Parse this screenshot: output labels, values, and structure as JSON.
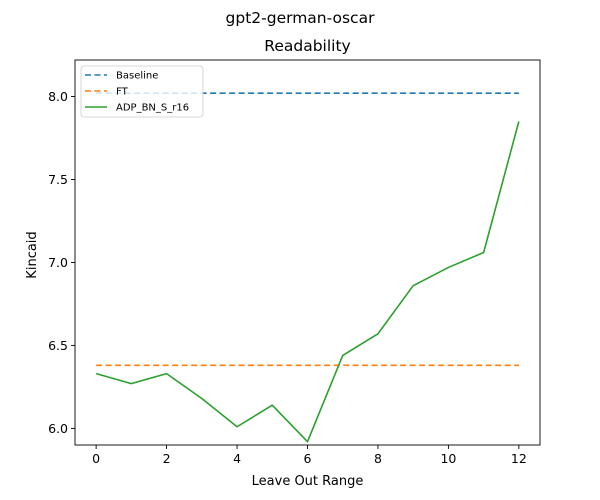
{
  "figure": {
    "suptitle": "gpt2-german-oscar"
  },
  "chart_data": {
    "type": "line",
    "title": "Readability",
    "xlabel": "Leave Out Range",
    "ylabel": "Kincaid",
    "xlim": [
      -0.6,
      12.6
    ],
    "ylim": [
      5.9,
      8.22
    ],
    "xticks": [
      0,
      2,
      4,
      6,
      8,
      10,
      12
    ],
    "xtick_labels": [
      "0",
      "2",
      "4",
      "6",
      "8",
      "10",
      "12"
    ],
    "yticks": [
      6.0,
      6.5,
      7.0,
      7.5,
      8.0
    ],
    "ytick_labels": [
      "6.0",
      "6.5",
      "7.0",
      "7.5",
      "8.0"
    ],
    "grid": false,
    "legend_position": "top-left",
    "x": [
      0,
      1,
      2,
      3,
      4,
      5,
      6,
      7,
      8,
      9,
      10,
      11,
      12
    ],
    "series": [
      {
        "name": "Baseline",
        "style": "dashed",
        "color": "#1f77b4",
        "values": [
          8.02,
          8.02,
          8.02,
          8.02,
          8.02,
          8.02,
          8.02,
          8.02,
          8.02,
          8.02,
          8.02,
          8.02,
          8.02
        ]
      },
      {
        "name": "FT",
        "style": "dashed",
        "color": "#ff7f0e",
        "values": [
          6.38,
          6.38,
          6.38,
          6.38,
          6.38,
          6.38,
          6.38,
          6.38,
          6.38,
          6.38,
          6.38,
          6.38,
          6.38
        ]
      },
      {
        "name": "ADP_BN_S_r16",
        "style": "solid",
        "color": "#2ca02c",
        "values": [
          6.33,
          6.27,
          6.33,
          6.18,
          6.01,
          6.14,
          5.92,
          6.44,
          6.57,
          6.86,
          6.97,
          7.06,
          7.85
        ]
      }
    ]
  }
}
